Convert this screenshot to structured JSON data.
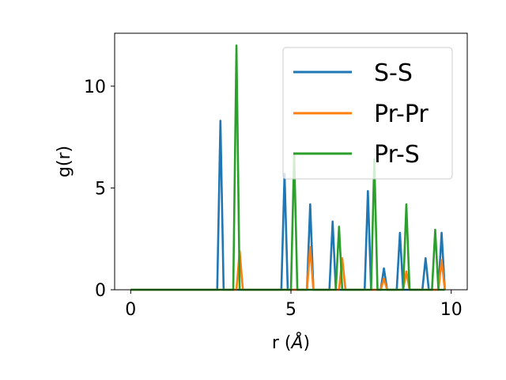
{
  "chart_data": {
    "type": "line",
    "title": "",
    "xlabel": "r (",
    "xlabel_unit": "Å",
    "xlabel_close": ")",
    "ylabel": "g(r)",
    "xlim": [
      -0.5,
      10.5
    ],
    "ylim": [
      0,
      12.6
    ],
    "xticks": [
      0,
      5,
      10
    ],
    "xtick_labels": [
      "0",
      "5",
      "10"
    ],
    "yticks": [
      0,
      5,
      10
    ],
    "ytick_labels": [
      "0",
      "5",
      "10"
    ],
    "grid": false,
    "legend_position": "top-right",
    "series": [
      {
        "name": "S-S",
        "color": "#1f77b4",
        "x": [
          0,
          2.7,
          2.8,
          2.9,
          3.0,
          4.7,
          4.8,
          4.9,
          5.5,
          5.6,
          5.7,
          6.2,
          6.3,
          6.4,
          6.5,
          7.3,
          7.4,
          7.5,
          7.8,
          7.9,
          8.0,
          8.3,
          8.4,
          8.5,
          8.6,
          9.1,
          9.2,
          9.3,
          9.6,
          9.7,
          9.8
        ],
        "y": [
          0,
          0,
          8.3,
          0,
          0,
          0,
          5.7,
          0,
          0,
          4.2,
          0,
          0,
          3.35,
          0,
          0,
          0,
          4.85,
          0,
          0,
          1.05,
          0,
          0,
          2.8,
          0,
          0,
          0,
          1.55,
          0,
          0,
          2.8,
          0
        ]
      },
      {
        "name": "Pr-Pr",
        "color": "#ff7f0e",
        "x": [
          0,
          3.3,
          3.4,
          3.5,
          5.5,
          5.6,
          5.7,
          6.5,
          6.6,
          6.7,
          7.8,
          7.9,
          8.0,
          8.5,
          8.6,
          8.7,
          9.6,
          9.7,
          9.8
        ],
        "y": [
          0,
          0,
          1.9,
          0,
          0,
          2.1,
          0,
          0,
          1.55,
          0,
          0,
          0.55,
          0,
          0,
          0.9,
          0,
          0,
          1.45,
          0
        ]
      },
      {
        "name": "Pr-S",
        "color": "#2ca02c",
        "x": [
          0,
          3.2,
          3.3,
          3.4,
          5.0,
          5.1,
          5.2,
          6.4,
          6.5,
          6.6,
          7.5,
          7.6,
          7.7,
          8.5,
          8.6,
          8.7,
          9.4,
          9.5,
          9.6,
          9.8
        ],
        "y": [
          0,
          0,
          12.0,
          0,
          0,
          6.7,
          0,
          0,
          3.1,
          0,
          0,
          6.4,
          0,
          0,
          4.2,
          0,
          0,
          2.95,
          0,
          0
        ]
      }
    ]
  }
}
